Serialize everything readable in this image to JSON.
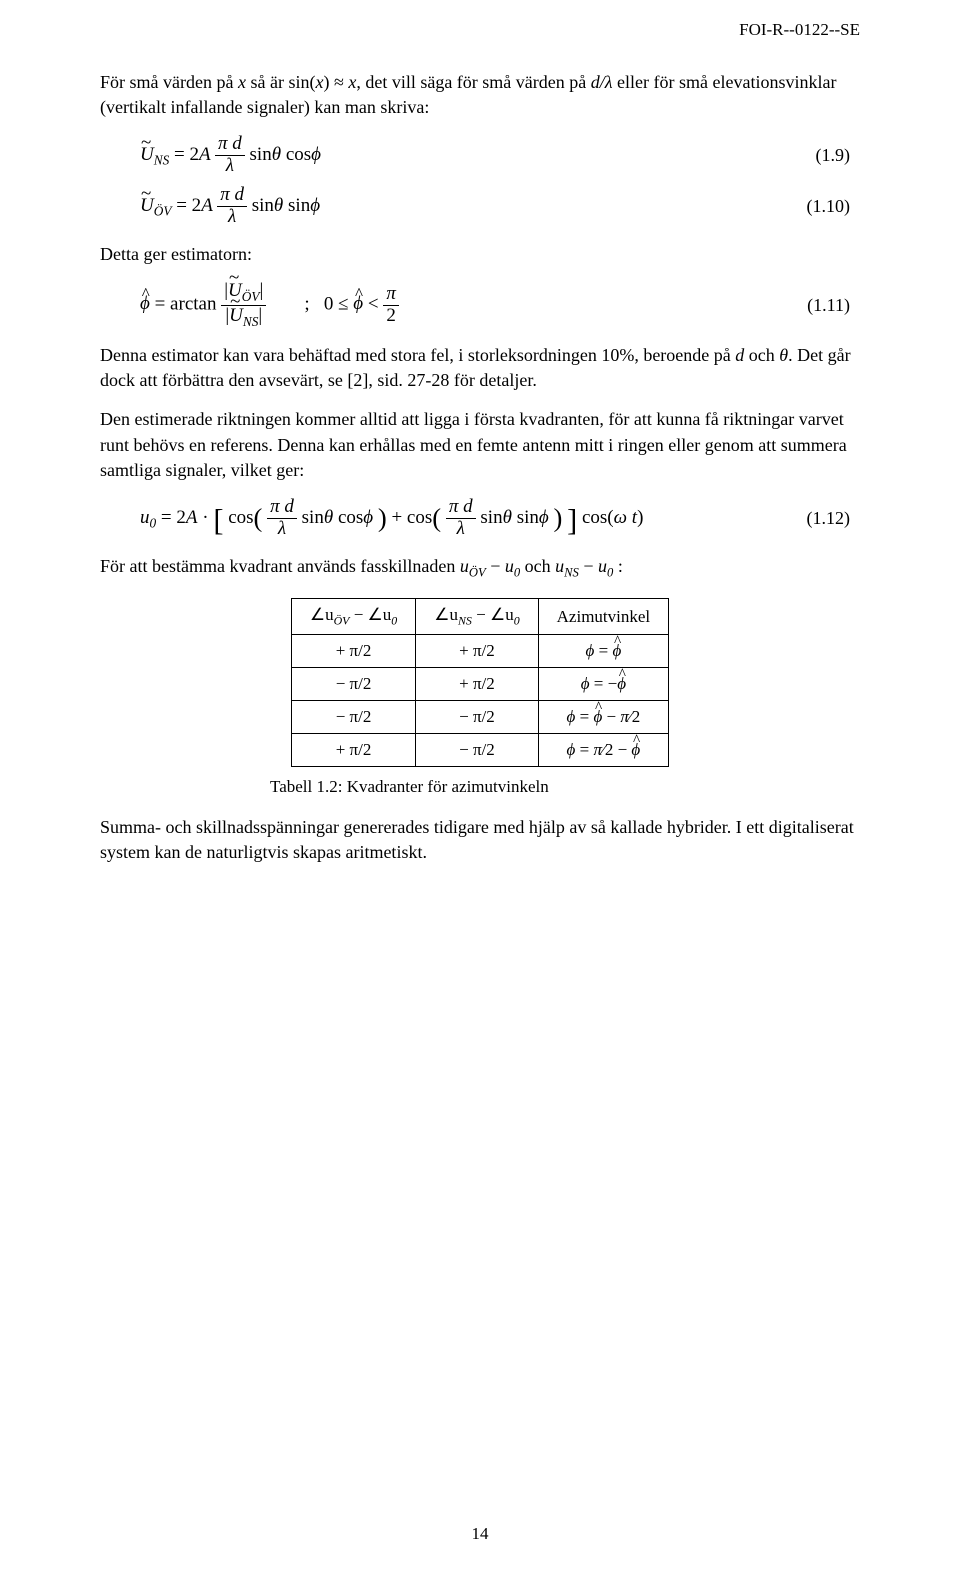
{
  "doc_id": "FOI-R--0122--SE",
  "paragraphs": {
    "p1_a": "För små värden på ",
    "p1_b": " så är sin(",
    "p1_c": ") ≈ ",
    "p1_d": ", det vill säga för små värden på ",
    "p1_e": " eller för små elevationsvinklar (vertikalt infallande signaler) kan man skriva:",
    "p2": "Detta ger estimatorn:",
    "p3_a": "Denna estimator kan vara behäftad med stora fel, i storleksordningen 10%, beroende på ",
    "p3_b": " och ",
    "p3_c": ". Det går dock att förbättra den avsevärt, se [2], sid. 27-28 för detaljer.",
    "p4": "Den estimerade riktningen kommer alltid att ligga i första kvadranten, för att kunna få riktningar varvet runt behövs en referens. Denna kan erhållas med en femte antenn mitt i ringen eller genom att summera samtliga signaler, vilket ger:",
    "p5_a": "För att bestämma kvadrant används fasskillnaden ",
    "p5_b": " och ",
    "p5_c": ":",
    "p6": "Summa- och skillnadsspänningar genererades tidigare med hjälp av så kallade hybrider. I ett digitaliserat system kan de naturligtvis skapas aritmetiskt."
  },
  "equations": {
    "eq19_num": "(1.9)",
    "eq110_num": "(1.10)",
    "eq111_num": "(1.11)",
    "eq112_num": "(1.12)"
  },
  "symbols": {
    "x": "x",
    "d_over_lambda": "d/λ",
    "d": "d",
    "theta": "θ",
    "lambda": "λ",
    "pi": "π",
    "phi": "ϕ",
    "U": "U",
    "u_script": "u",
    "NS": "NS",
    "OV": "ÖV",
    "zero": "0",
    "A": "A",
    "two": "2",
    "arctan": "arctan",
    "sin": "sin",
    "cos": "cos",
    "omega_t": "ω t"
  },
  "table": {
    "headers": {
      "col1_a": "∠u",
      "col1_b": " − ∠u",
      "col2_a": "∠u",
      "col2_b": " − ∠u",
      "col3": "Azimutvinkel"
    },
    "rows": [
      {
        "c1": "+ π/2",
        "c2": "+ π/2",
        "c3_pre": "ϕ = ",
        "c3_type": "phihat"
      },
      {
        "c1": "− π/2",
        "c2": "+ π/2",
        "c3_pre": "ϕ = −",
        "c3_type": "phihat"
      },
      {
        "c1": "− π/2",
        "c2": "− π/2",
        "c3_pre": "ϕ = ",
        "c3_type": "phihat_minus_pi2"
      },
      {
        "c1": "+ π/2",
        "c2": "− π/2",
        "c3_pre": "ϕ = ",
        "c3_type": "pi2_minus_phihat"
      }
    ],
    "caption": "Tabell 1.2: Kvadranter för azimutvinkeln"
  },
  "page_number": "14"
}
